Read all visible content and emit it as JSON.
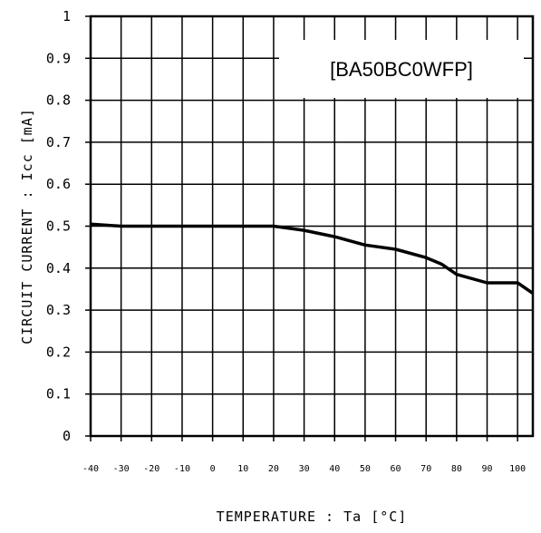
{
  "chart_data": {
    "type": "line",
    "legend_label": "[BA50BC0WFP]",
    "legend_placement": "top-right",
    "xlabel": "TEMPERATURE : Ta [°C]",
    "ylabel": "CIRCUIT CURRENT : Icc [mA]",
    "xlim": [
      -40,
      105
    ],
    "ylim": [
      0,
      1
    ],
    "grid": true,
    "x_ticks": [
      -40,
      -30,
      -20,
      -10,
      0,
      10,
      20,
      30,
      40,
      50,
      60,
      70,
      80,
      90,
      100
    ],
    "x_tick_labels": [
      "-40",
      "-30",
      "-20",
      "-10",
      "0",
      "10",
      "20",
      "30",
      "40",
      "50",
      "60",
      "70",
      "80",
      "90",
      "100"
    ],
    "y_ticks": [
      0,
      0.1,
      0.2,
      0.3,
      0.4,
      0.5,
      0.6,
      0.7,
      0.8,
      0.9,
      1
    ],
    "y_tick_labels": [
      "0",
      "0.1",
      "0.2",
      "0.3",
      "0.4",
      "0.5",
      "0.6",
      "0.7",
      "0.8",
      "0.9",
      "1"
    ],
    "series": [
      {
        "x": [
          -40,
          -30,
          -20,
          -10,
          0,
          10,
          20,
          30,
          40,
          50,
          60,
          70,
          75,
          80,
          90,
          100,
          105
        ],
        "y": [
          0.505,
          0.5,
          0.5,
          0.5,
          0.5,
          0.5,
          0.5,
          0.49,
          0.475,
          0.455,
          0.445,
          0.425,
          0.41,
          0.385,
          0.365,
          0.365,
          0.34
        ]
      }
    ]
  }
}
